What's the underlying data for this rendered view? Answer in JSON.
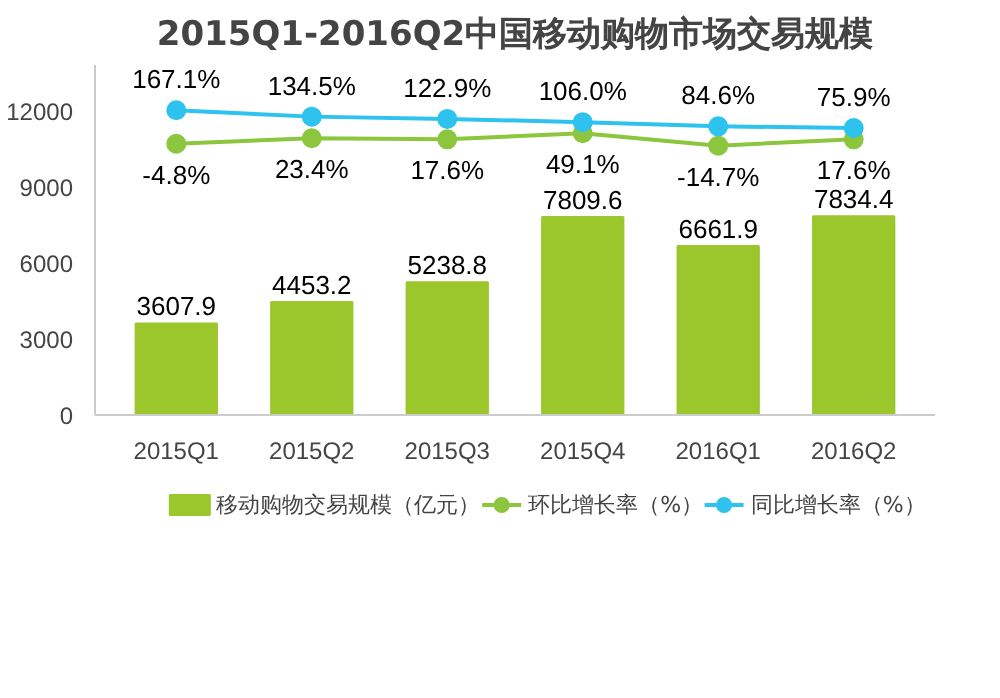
{
  "chart_data": {
    "type": "bar",
    "title": "2015Q1-2016Q2中国移动购物市场交易规模",
    "categories": [
      "2015Q1",
      "2015Q2",
      "2015Q3",
      "2015Q4",
      "2016Q1",
      "2016Q2"
    ],
    "series": [
      {
        "name": "移动购物交易规模（亿元）",
        "color": "#9bc72c",
        "values": [
          3607.9,
          4453.2,
          5238.8,
          7809.6,
          6661.9,
          7834.4
        ],
        "value_labels": [
          "3607.9",
          "4453.2",
          "5238.8",
          "7809.6",
          "6661.9",
          "7834.4"
        ]
      },
      {
        "name": "环比增长率（%）",
        "type": "line",
        "axis": "y2",
        "color": "#8cc63f",
        "values": [
          -4.8,
          23.4,
          17.6,
          49.1,
          -14.7,
          17.6
        ],
        "value_labels": [
          "-4.8%",
          "23.4%",
          "17.6%",
          "49.1%",
          "-14.7%",
          "17.6%"
        ]
      },
      {
        "name": "同比增长率（%）",
        "type": "line",
        "axis": "y2",
        "color": "#2dc3ee",
        "values": [
          167.1,
          134.5,
          122.9,
          106.0,
          84.6,
          75.9
        ],
        "value_labels": [
          "167.1%",
          "134.5%",
          "122.9%",
          "106.0%",
          "84.6%",
          "75.9%"
        ]
      }
    ],
    "ylim": [
      0,
      13800
    ],
    "yticks": [
      0,
      3000,
      6000,
      9000,
      12000
    ],
    "y2lim": [
      -1400,
      400
    ],
    "legend": "bottom",
    "marker": "circle"
  }
}
